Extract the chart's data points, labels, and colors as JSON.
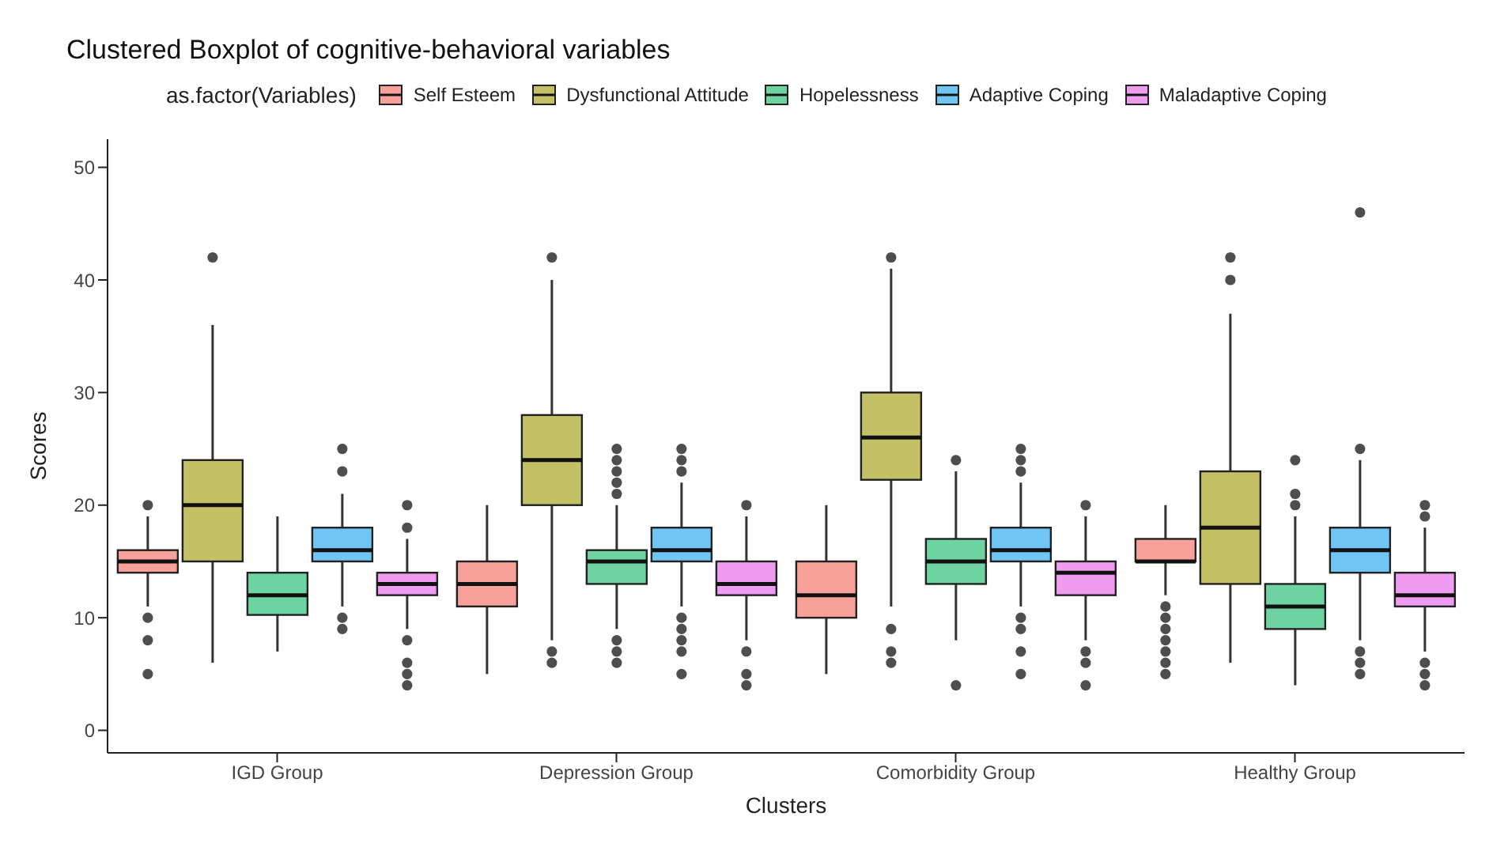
{
  "chart_data": {
    "type": "box",
    "title": "Clustered Boxplot of cognitive-behavioral variables",
    "xlabel": "Clusters",
    "ylabel": "Scores",
    "legend_title": "as.factor(Variables)",
    "legend": "top",
    "grid": false,
    "categories": [
      "IGD Group",
      "Depression Group",
      "Comorbidity Group",
      "Healthy Group"
    ],
    "ylim": [
      -2,
      52.5
    ],
    "yticks": [
      0,
      10,
      20,
      30,
      40,
      50
    ],
    "series": [
      {
        "name": "Self Esteem",
        "color": "#f8a09a",
        "boxes": [
          {
            "low": 11,
            "q1": 14,
            "median": 15,
            "q3": 16,
            "high": 19,
            "outliers": [
              20,
              10,
              8,
              5
            ]
          },
          {
            "low": 5,
            "q1": 11,
            "median": 13,
            "q3": 15,
            "high": 20
          },
          {
            "low": 5,
            "q1": 10,
            "median": 12,
            "q3": 15,
            "high": 20
          },
          {
            "low": 12,
            "q1": 15,
            "median": 15,
            "q3": 17,
            "high": 20,
            "outliers": [
              11,
              10,
              9,
              8,
              7,
              6,
              5
            ]
          }
        ]
      },
      {
        "name": "Dysfunctional Attitude",
        "color": "#c3c066",
        "boxes": [
          {
            "low": 6,
            "q1": 15,
            "median": 20,
            "q3": 24,
            "high": 36,
            "outliers": [
              42
            ]
          },
          {
            "low": 8,
            "q1": 20,
            "median": 24,
            "q3": 28,
            "high": 40,
            "outliers": [
              42,
              7,
              6
            ]
          },
          {
            "low": 11,
            "q1": 22.25,
            "median": 26,
            "q3": 30,
            "high": 41,
            "outliers": [
              42,
              9,
              7,
              6
            ]
          },
          {
            "low": 6,
            "q1": 13,
            "median": 18,
            "q3": 23,
            "high": 37,
            "outliers": [
              42,
              40
            ]
          }
        ]
      },
      {
        "name": "Hopelessness",
        "color": "#6dd3a1",
        "boxes": [
          {
            "low": 7,
            "q1": 10.25,
            "median": 12,
            "q3": 14,
            "high": 19
          },
          {
            "low": 9,
            "q1": 13,
            "median": 15,
            "q3": 16,
            "high": 20,
            "outliers": [
              25,
              24,
              23,
              22,
              21,
              8,
              7,
              6
            ]
          },
          {
            "low": 8,
            "q1": 13,
            "median": 15,
            "q3": 17,
            "high": 23,
            "outliers": [
              24,
              4
            ]
          },
          {
            "low": 4,
            "q1": 9,
            "median": 11,
            "q3": 13,
            "high": 19,
            "outliers": [
              24,
              21,
              20
            ]
          }
        ]
      },
      {
        "name": "Adaptive Coping",
        "color": "#6fc6f5",
        "boxes": [
          {
            "low": 11,
            "q1": 15,
            "median": 16,
            "q3": 18,
            "high": 21,
            "outliers": [
              25,
              23,
              10,
              9
            ]
          },
          {
            "low": 11,
            "q1": 15,
            "median": 16,
            "q3": 18,
            "high": 22,
            "outliers": [
              25,
              24,
              23,
              10,
              9,
              8,
              7,
              5
            ]
          },
          {
            "low": 11,
            "q1": 15,
            "median": 16,
            "q3": 18,
            "high": 22,
            "outliers": [
              25,
              24,
              23,
              10,
              9,
              7,
              5
            ]
          },
          {
            "low": 8,
            "q1": 14,
            "median": 16,
            "q3": 18,
            "high": 24,
            "outliers": [
              46,
              25,
              7,
              6,
              5
            ]
          }
        ]
      },
      {
        "name": "Maladaptive Coping",
        "color": "#ef9bef",
        "boxes": [
          {
            "low": 9,
            "q1": 12,
            "median": 13,
            "q3": 14,
            "high": 17,
            "outliers": [
              20,
              18,
              8,
              6,
              5,
              4
            ]
          },
          {
            "low": 8,
            "q1": 12,
            "median": 13,
            "q3": 15,
            "high": 19,
            "outliers": [
              20,
              7,
              5,
              4
            ]
          },
          {
            "low": 8,
            "q1": 12,
            "median": 14,
            "q3": 15,
            "high": 19,
            "outliers": [
              20,
              7,
              6,
              4
            ]
          },
          {
            "low": 7,
            "q1": 11,
            "median": 12,
            "q3": 14,
            "high": 18,
            "outliers": [
              20,
              19,
              6,
              5,
              4
            ]
          }
        ]
      }
    ]
  }
}
